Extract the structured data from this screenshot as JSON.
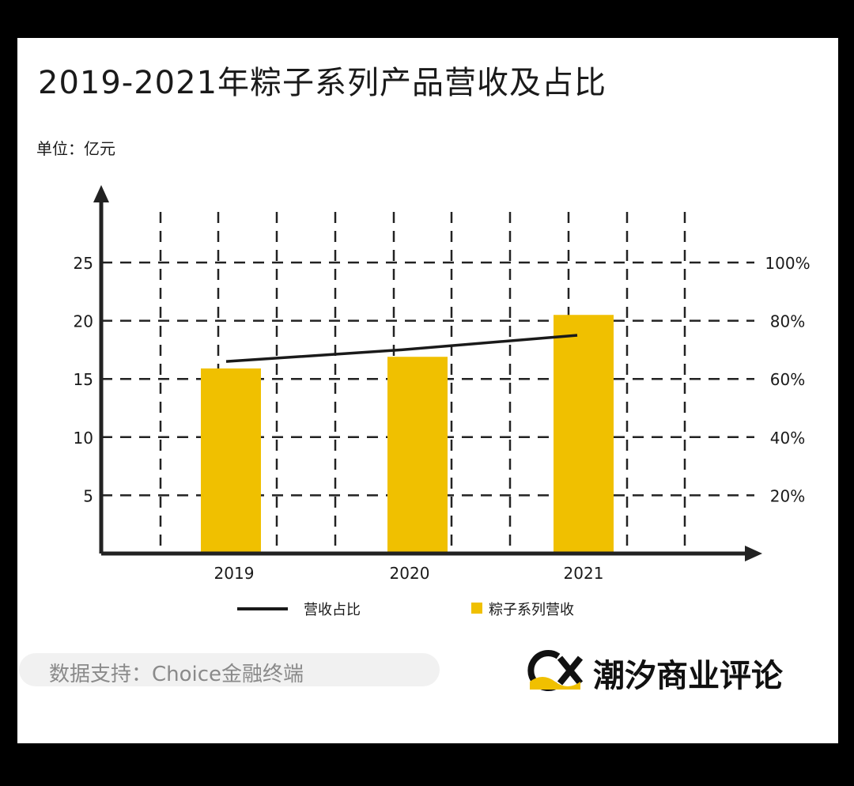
{
  "chart_data": {
    "type": "bar",
    "title": "2019-2021年粽子系列产品营收及占比",
    "unit_label": "单位：亿元",
    "categories": [
      "2019",
      "2020",
      "2021"
    ],
    "y_left": {
      "ylim": [
        0,
        25
      ],
      "ticks": [
        5,
        10,
        15,
        20,
        25
      ]
    },
    "y_right": {
      "ylim": [
        0,
        1.0
      ],
      "ticks": [
        "20%",
        "40%",
        "60%",
        "80%",
        "100%"
      ]
    },
    "grid": true,
    "legend_position": "bottom",
    "series": [
      {
        "name": "粽子系列营收",
        "type": "bar",
        "axis": "left",
        "values": [
          15.9,
          16.9,
          20.5
        ],
        "color": "#F0C000"
      },
      {
        "name": "营收占比",
        "type": "line",
        "axis": "right",
        "values": [
          0.66,
          0.7,
          0.75
        ],
        "color": "#1a1a1a"
      }
    ]
  },
  "footer": {
    "source": "数据支持：Choice金融终端",
    "brand": "潮汐商业评论",
    "brand_mark": "CX"
  }
}
